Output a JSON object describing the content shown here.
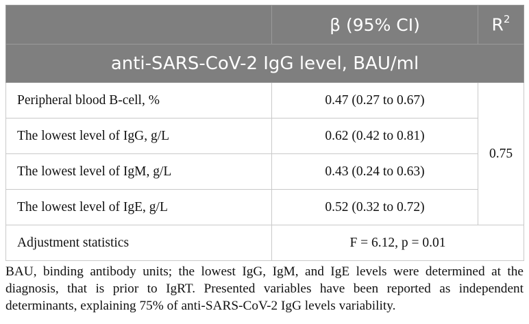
{
  "header": {
    "col1": "",
    "col2": "β (95% CI)",
    "col3_base": "R",
    "col3_sup": "2"
  },
  "section_title": "anti-SARS-CoV-2 IgG level, BAU/ml",
  "rows": [
    {
      "variable": "Peripheral blood B-cell, %",
      "beta": "0.47 (0.27 to 0.67)"
    },
    {
      "variable": "The lowest level of IgG, g/L",
      "beta": "0.62 (0.42 to 0.81)"
    },
    {
      "variable": "The lowest level of IgM, g/L",
      "beta": "0.43 (0.24 to 0.63)"
    },
    {
      "variable": "The lowest level of IgE, g/L",
      "beta": "0.52 (0.32 to 0.72)"
    }
  ],
  "r2_value": "0.75",
  "adjustment": {
    "label": "Adjustment statistics",
    "value": "F = 6.12, p = 0.01"
  },
  "footnote": "BAU, binding antibody units; the lowest IgG, IgM, and IgE levels were determined at the diagnosis, that is prior to IgRT. Presented variables have been reported as independent determinants, explaining 75% of anti-SARS-CoV-2 IgG levels variability.",
  "colors": {
    "header_bg": "#7f7f7f",
    "header_text": "#ffffff",
    "border": "#c9c9c9"
  }
}
